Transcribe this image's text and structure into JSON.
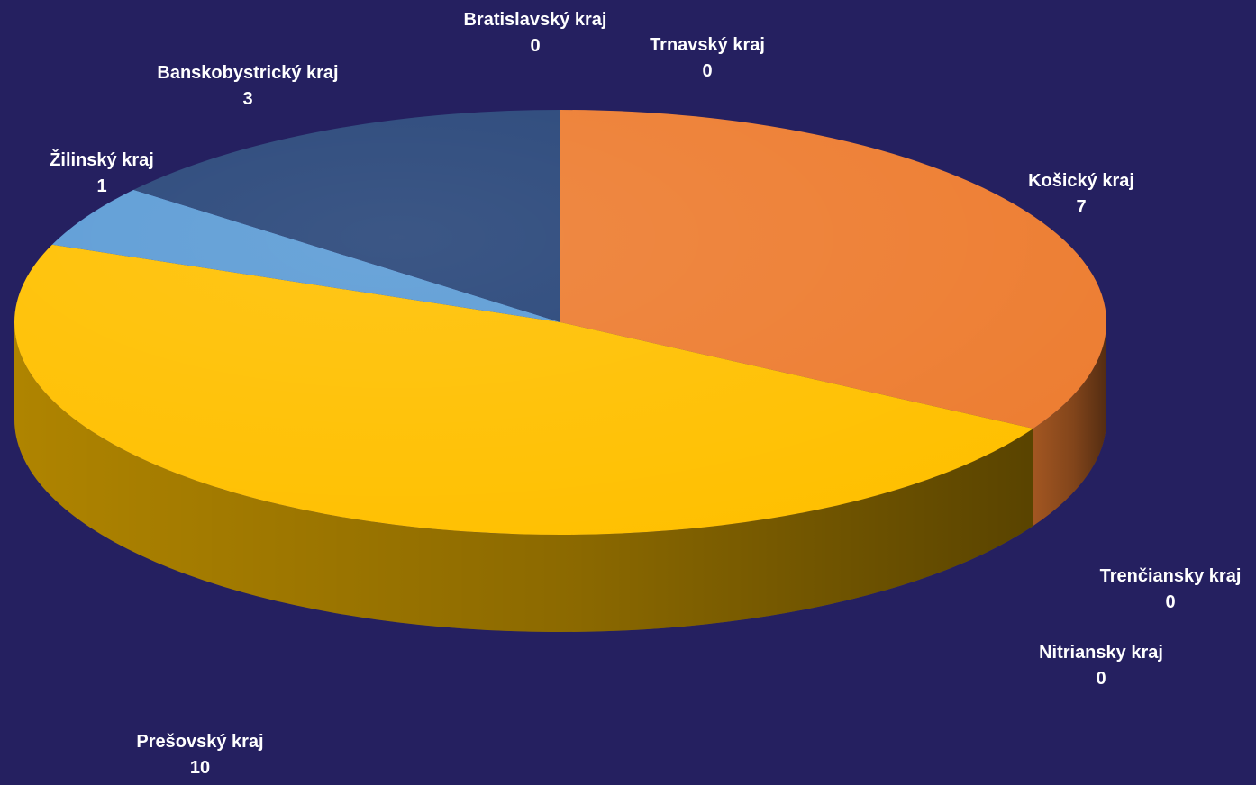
{
  "background": "#252060",
  "chart_data": {
    "type": "pie",
    "title": "",
    "slices": [
      {
        "label": "Košický kraj",
        "value": 7,
        "color": "#ED7D31"
      },
      {
        "label": "Trenčiansky kraj",
        "value": 0,
        "color": "#A5A5A5"
      },
      {
        "label": "Nitriansky kraj",
        "value": 0,
        "color": "#70AD47"
      },
      {
        "label": "Prešovský kraj",
        "value": 10,
        "color": "#FFC000"
      },
      {
        "label": "Žilinský kraj",
        "value": 1,
        "color": "#5B9BD5"
      },
      {
        "label": "Banskobystrický kraj",
        "value": 3,
        "color": "#264478"
      },
      {
        "label": "Bratislavský kraj",
        "value": 0,
        "color": "#4472C4"
      },
      {
        "label": "Trnavský kraj",
        "value": 0,
        "color": "#9E480E"
      }
    ]
  }
}
